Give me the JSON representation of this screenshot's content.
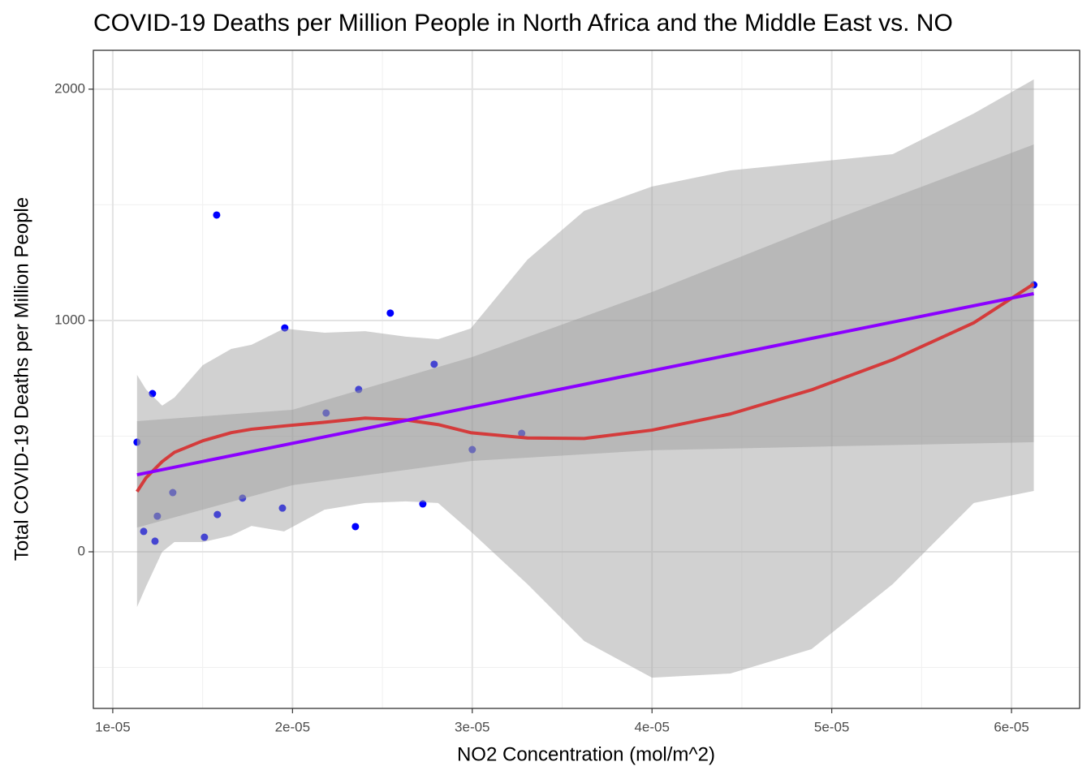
{
  "chart_data": {
    "type": "scatter",
    "title": "COVID-19 Deaths per Million People in North Africa and the Middle East vs. NO",
    "x_label": "NO2 Concentration (mol/m^2)",
    "y_label": "Total COVID-19 Deaths per Million People",
    "xlim": [
      8.92e-06,
      6.379e-05
    ],
    "ylim": [
      -677,
      2168
    ],
    "xticks": [
      {
        "value": 1e-05,
        "label": "1e-05"
      },
      {
        "value": 2e-05,
        "label": "2e-05"
      },
      {
        "value": 3e-05,
        "label": "3e-05"
      },
      {
        "value": 4e-05,
        "label": "4e-05"
      },
      {
        "value": 5e-05,
        "label": "5e-05"
      },
      {
        "value": 6e-05,
        "label": "6e-05"
      }
    ],
    "x_minor_ticks": [
      1.5e-05,
      2.5e-05,
      3.5e-05,
      4.5e-05,
      5.5e-05
    ],
    "yticks": [
      0,
      1000,
      2000
    ],
    "y_minor_ticks": [
      -500,
      500,
      1500
    ],
    "grid": true,
    "points": {
      "color": "#0000ff",
      "x": [
        1.135e-05,
        1.221e-05,
        1.172e-05,
        1.235e-05,
        1.248e-05,
        1.334e-05,
        1.51e-05,
        1.578e-05,
        1.582e-05,
        1.722e-05,
        1.944e-05,
        1.957e-05,
        2.187e-05,
        2.35e-05,
        2.368e-05,
        2.544e-05,
        2.725e-05,
        2.788e-05,
        3e-05,
        3.275e-05,
        6.124e-05
      ],
      "values": [
        474,
        684,
        88,
        46,
        154,
        256,
        63,
        1456,
        161,
        232,
        189,
        968,
        600,
        109,
        702,
        1032,
        207,
        811,
        442,
        512,
        1154
      ]
    },
    "band_color": "#999999",
    "fits": [
      {
        "color": "#d43b3b",
        "x": [
          1.135e-05,
          1.185e-05,
          1.275e-05,
          1.343e-05,
          1.501e-05,
          1.659e-05,
          1.772e-05,
          1.953e-05,
          2.178e-05,
          2.404e-05,
          2.63e-05,
          2.81e-05,
          2.991e-05,
          3.307e-05,
          3.623e-05,
          4e-05,
          4.436e-05,
          4.887e-05,
          5.339e-05,
          5.79e-05,
          6.124e-05
        ],
        "values": [
          260,
          320,
          390,
          430,
          480,
          515,
          530,
          544,
          560,
          578,
          570,
          550,
          515,
          492,
          490,
          526,
          596,
          700,
          830,
          990,
          1158
        ],
        "upper": [
          765,
          702,
          632,
          667,
          807,
          877,
          895,
          965,
          947,
          954,
          930,
          919,
          965,
          1263,
          1474,
          1579,
          1649,
          1684,
          1719,
          1895,
          2042
        ],
        "lower": [
          -239,
          -150,
          0,
          42,
          42,
          70,
          112,
          88,
          182,
          211,
          218,
          211,
          88,
          -140,
          -386,
          -544,
          -526,
          -421,
          -140,
          211,
          263
        ]
      },
      {
        "color": "#8b00ff",
        "x": [
          1.135e-05,
          2e-05,
          3e-05,
          4e-05,
          5e-05,
          6.124e-05
        ],
        "values": [
          333,
          469,
          626,
          783,
          940,
          1116
        ],
        "upper": [
          565,
          614,
          842,
          1123,
          1432,
          1761
        ],
        "lower": [
          105,
          288,
          393,
          439,
          456,
          474
        ]
      }
    ]
  }
}
